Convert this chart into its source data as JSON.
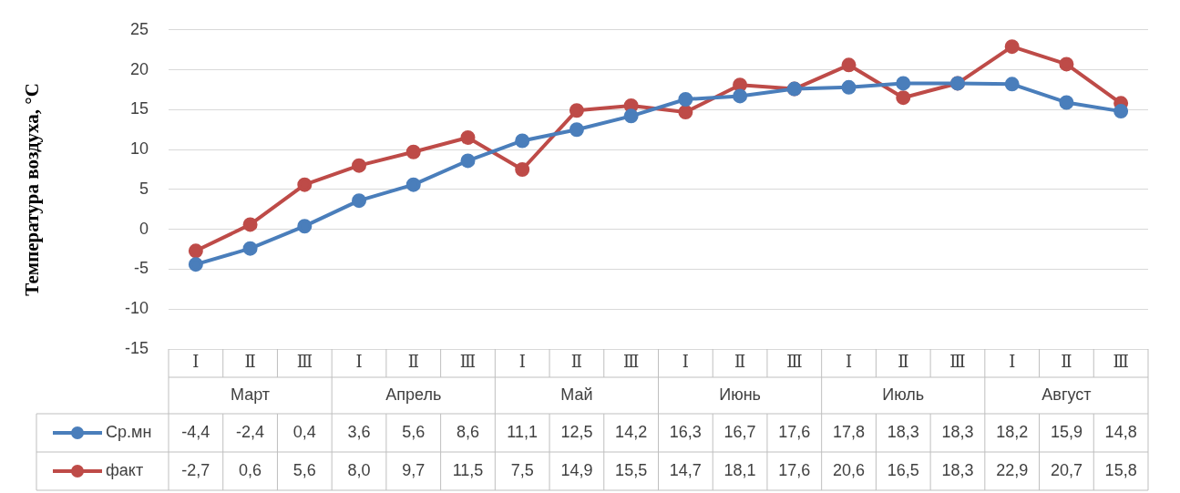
{
  "chart_data": {
    "type": "line",
    "ylabel": "Температура воздуха, °С",
    "categories": [
      "Ⅰ",
      "Ⅱ",
      "Ⅲ",
      "Ⅰ",
      "Ⅱ",
      "Ⅲ",
      "Ⅰ",
      "Ⅱ",
      "Ⅲ",
      "Ⅰ",
      "Ⅱ",
      "Ⅲ",
      "Ⅰ",
      "Ⅱ",
      "Ⅲ",
      "Ⅰ",
      "Ⅱ",
      "Ⅲ"
    ],
    "annotations": [
      "Март",
      "Апрель",
      "Май",
      "Июнь",
      "Июль",
      "Август"
    ],
    "series": [
      {
        "name": "Ср.мн",
        "color": "#4a7ebb",
        "values": [
          -4.4,
          -2.4,
          0.4,
          3.6,
          5.6,
          8.6,
          11.1,
          12.5,
          14.2,
          16.3,
          16.7,
          17.6,
          17.8,
          18.3,
          18.3,
          18.2,
          15.9,
          14.8
        ],
        "value_labels": [
          "-4,4",
          "-2,4",
          "0,4",
          "3,6",
          "5,6",
          "8,6",
          "11,1",
          "12,5",
          "14,2",
          "16,3",
          "16,7",
          "17,6",
          "17,8",
          "18,3",
          "18,3",
          "18,2",
          "15,9",
          "14,8"
        ]
      },
      {
        "name": "факт",
        "color": "#be4b48",
        "values": [
          -2.7,
          0.6,
          5.6,
          8.0,
          9.7,
          11.5,
          7.5,
          14.9,
          15.5,
          14.7,
          18.1,
          17.6,
          20.6,
          16.5,
          18.3,
          22.9,
          20.7,
          15.8
        ],
        "value_labels": [
          "-2,7",
          "0,6",
          "5,6",
          "8,0",
          "9,7",
          "11,5",
          "7,5",
          "14,9",
          "15,5",
          "14,7",
          "18,1",
          "17,6",
          "20,6",
          "16,5",
          "18,3",
          "22,9",
          "20,7",
          "15,8"
        ]
      }
    ],
    "ylim": [
      -15,
      25
    ],
    "yticks": [
      -15,
      -10,
      -5,
      0,
      5,
      10,
      15,
      20,
      25
    ],
    "grid": "y",
    "legend": "bottom",
    "marker": "circle",
    "line_style": "solid"
  }
}
